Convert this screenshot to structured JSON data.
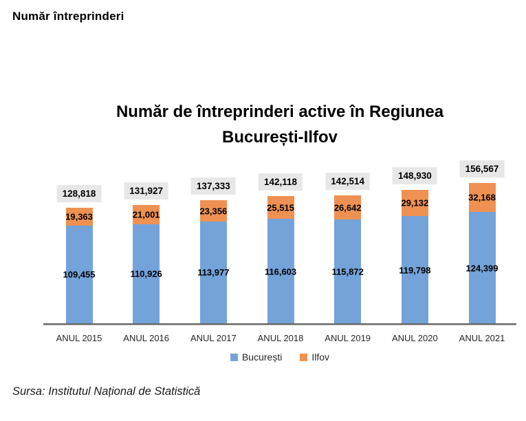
{
  "page": {
    "header": "Număr întreprinderi",
    "source": "Sursa: Institutul Național de Statistică"
  },
  "chart_data": {
    "type": "bar",
    "stacked": true,
    "title": "Număr de întreprinderi active în Regiunea București-Ilfov",
    "title_lines": [
      "Număr de întreprinderi active în Regiunea",
      "București-Ilfov"
    ],
    "categories": [
      "ANUL 2015",
      "ANUL 2016",
      "ANUL 2017",
      "ANUL 2018",
      "ANUL 2019",
      "ANUL 2020",
      "ANUL 2021"
    ],
    "series": [
      {
        "name": "București",
        "color": "#74A3D9",
        "values": [
          109455,
          110926,
          113977,
          116603,
          115872,
          119798,
          124399
        ]
      },
      {
        "name": "Ilfov",
        "color": "#EF9152",
        "values": [
          19363,
          21001,
          23356,
          25515,
          26642,
          29132,
          32168
        ]
      }
    ],
    "totals": [
      128818,
      131927,
      137333,
      142118,
      142514,
      148930,
      156567
    ],
    "total_label_bg": "#E7E7E7",
    "axis_color": "#666666",
    "legend_position": "bottom",
    "grid": false,
    "data_labels": "inside-center",
    "ylim": [
      0,
      183000
    ]
  }
}
